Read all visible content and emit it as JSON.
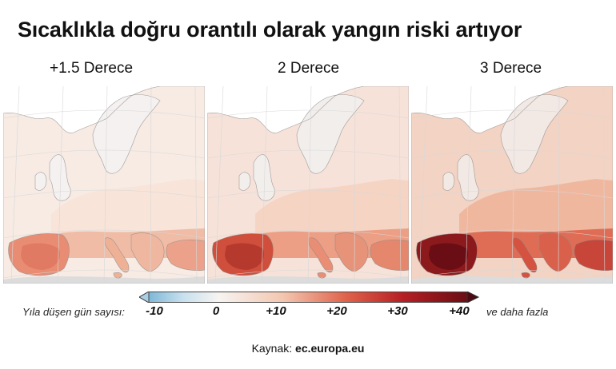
{
  "title": "Sıcaklıkla doğru orantılı olarak yangın riski artıyor",
  "panels": [
    {
      "label": "+1.5 Derece",
      "level": 1
    },
    {
      "label": "2 Derece",
      "level": 2
    },
    {
      "label": "3 Derece",
      "level": 3
    }
  ],
  "legend": {
    "label": "Yıla düşen gün sayısı:",
    "ticks": [
      "-10",
      "0",
      "+10",
      "+20",
      "+30",
      "+40"
    ],
    "more": "ve daha fazla",
    "colors": {
      "low": "#7fb8d8",
      "mid": "#f7f4f1",
      "high": "#6a0d14"
    }
  },
  "source": {
    "prefix": "Kaynak:",
    "name": "ec.europa.eu"
  }
}
